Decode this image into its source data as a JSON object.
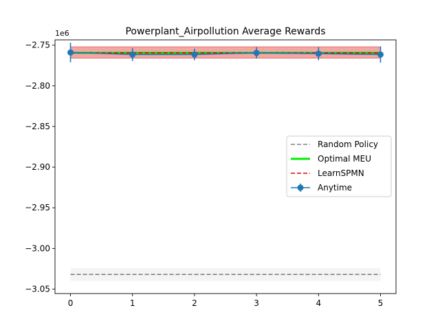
{
  "chart_data": {
    "type": "line",
    "title": "Powerplant_Airpollution Average Rewards",
    "xlabel": "",
    "ylabel": "",
    "y_offset_label": "1e6",
    "y_scale_factor": 1000000,
    "xlim": [
      -0.25,
      5.25
    ],
    "ylim": [
      -3.0555,
      -2.7435
    ],
    "x_ticks": [
      0,
      1,
      2,
      3,
      4,
      5
    ],
    "y_ticks": [
      -3.05,
      -3.0,
      -2.95,
      -2.9,
      -2.85,
      -2.8,
      -2.75
    ],
    "x_tick_labels": [
      "0",
      "1",
      "2",
      "3",
      "4",
      "5"
    ],
    "y_tick_labels": [
      "−3.05",
      "−3.00",
      "−2.95",
      "−2.90",
      "−2.85",
      "−2.80",
      "−2.75"
    ],
    "grid": false,
    "legend_position": "center-right",
    "x": [
      0,
      1,
      2,
      3,
      4,
      5
    ],
    "series": [
      {
        "name": "Random Policy",
        "style": "dashed",
        "color": "#808080",
        "values": [
          -3.032,
          -3.032,
          -3.032,
          -3.032,
          -3.032,
          -3.032
        ],
        "band": [
          -3.04,
          -3.024
        ],
        "band_color": "#f4f4f4"
      },
      {
        "name": "Optimal MEU",
        "style": "solid-thick",
        "color": "#00ee00",
        "values": [
          -2.7595,
          -2.7595,
          -2.7595,
          -2.7595,
          -2.7595,
          -2.7595
        ]
      },
      {
        "name": "LearnSPMN",
        "style": "dashed",
        "color": "#dd0000",
        "values": [
          -2.7595,
          -2.7595,
          -2.7595,
          -2.7595,
          -2.7595,
          -2.7595
        ],
        "band": [
          -2.766,
          -2.752
        ],
        "band_color": "#f08080"
      },
      {
        "name": "Anytime",
        "style": "errorbar",
        "color": "#1f77b4",
        "values": [
          -2.759,
          -2.7615,
          -2.7615,
          -2.7595,
          -2.7605,
          -2.7615
        ],
        "errors": [
          0.012,
          0.008,
          0.007,
          0.007,
          0.008,
          0.01
        ]
      }
    ]
  }
}
